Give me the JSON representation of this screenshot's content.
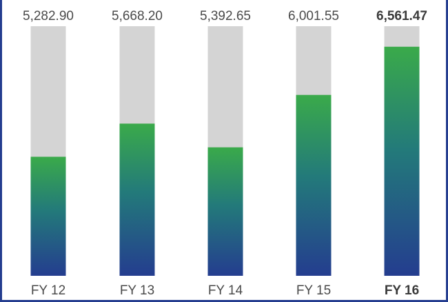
{
  "chart_data": {
    "type": "bar",
    "categories": [
      "FY 12",
      "FY 13",
      "FY 14",
      "FY 15",
      "FY 16"
    ],
    "values": [
      5282.9,
      5668.2,
      5392.65,
      6001.55,
      6561.47
    ],
    "value_labels": [
      "5,282.90",
      "5,668.20",
      "5,392.65",
      "6,001.55",
      "6,561.47"
    ],
    "highlight_index": 4,
    "title": "",
    "xlabel": "",
    "ylabel": "",
    "ylim": [
      3900,
      6800
    ],
    "grid": false,
    "legend": "none",
    "colors": {
      "background_bar": "#d4d4d4",
      "bar_top": "#3aaa4a",
      "bar_mid": "#237a7a",
      "bar_bottom": "#243d8f",
      "frame": "#243d8f",
      "label": "#4a4a4a"
    }
  }
}
